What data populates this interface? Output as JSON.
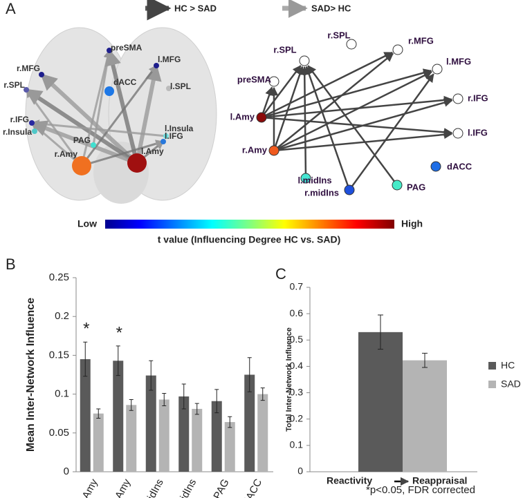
{
  "panel_labels": [
    "A",
    "B",
    "C"
  ],
  "panel_a": {
    "legend": [
      {
        "label": "HC > SAD",
        "color": "#555555"
      },
      {
        "label": "SAD> HC",
        "color": "#aaaaaa"
      }
    ],
    "brain_labels": [
      "preSMA",
      "r.MFG",
      "l.MFG",
      "r.SPL",
      "dACC",
      "l.SPL",
      "r.IFG",
      "r.Insula",
      "PAG",
      "l.Insula",
      "l.IFG",
      "r.Amy",
      "l.Amy"
    ],
    "network_nodes": [
      {
        "label": "r.SPL",
        "color": "#ffffff"
      },
      {
        "label": "r.SPL",
        "color": "#ffffff"
      },
      {
        "label": "r.MFG",
        "color": "#ffffff"
      },
      {
        "label": "l.MFG",
        "color": "#ffffff"
      },
      {
        "label": "r.IFG",
        "color": "#ffffff"
      },
      {
        "label": "l.IFG",
        "color": "#ffffff"
      },
      {
        "label": "preSMA",
        "color": "#ffffff"
      },
      {
        "label": "l.Amy",
        "color": "#8b0a0a"
      },
      {
        "label": "r.Amy",
        "color": "#f05a1e"
      },
      {
        "label": "l.midIns",
        "color": "#46e6d2"
      },
      {
        "label": "r.midIns",
        "color": "#1e50dc"
      },
      {
        "label": "PAG",
        "color": "#46ebc8"
      },
      {
        "label": "dACC",
        "color": "#1e6ee6"
      }
    ],
    "colorbar": {
      "low": "Low",
      "high": "High",
      "label": "t value (Influencing Degree HC vs. SAD)"
    }
  },
  "chart_data": [
    {
      "type": "bar",
      "y_label": "Mean Inter-Network Influence",
      "categories": [
        "l.Amy",
        "r.Amy",
        "l.midIns",
        "r.midIns",
        "PAG",
        "dACC"
      ],
      "series": [
        {
          "name": "HC",
          "color": "#5a5a5a",
          "values": [
            0.145,
            0.143,
            0.124,
            0.097,
            0.091,
            0.125
          ],
          "errors": [
            0.022,
            0.019,
            0.019,
            0.016,
            0.015,
            0.022
          ]
        },
        {
          "name": "SAD",
          "color": "#b4b4b4",
          "values": [
            0.075,
            0.086,
            0.093,
            0.081,
            0.064,
            0.1
          ],
          "errors": [
            0.006,
            0.007,
            0.008,
            0.007,
            0.007,
            0.008
          ]
        }
      ],
      "significance": [
        "*",
        "*",
        null,
        null,
        null,
        null
      ],
      "ylim": [
        0,
        0.25
      ],
      "yticks": [
        0,
        0.05,
        0.1,
        0.15,
        0.2,
        0.25
      ]
    },
    {
      "type": "bar",
      "y_label": "Total Inter-Network Influence",
      "x_label": [
        "Reactivity",
        "Reappraisal"
      ],
      "series": [
        {
          "name": "HC",
          "color": "#5a5a5a",
          "values": [
            0.53
          ],
          "errors": [
            0.065
          ]
        },
        {
          "name": "SAD",
          "color": "#b4b4b4",
          "values": [
            0.423
          ],
          "errors": [
            0.027
          ]
        }
      ],
      "ylim": [
        0,
        0.7
      ],
      "yticks": [
        0,
        0.1,
        0.2,
        0.3,
        0.4,
        0.5,
        0.6,
        0.7
      ],
      "legend": "right"
    }
  ],
  "footnote": "*p<0.05, FDR corrected"
}
